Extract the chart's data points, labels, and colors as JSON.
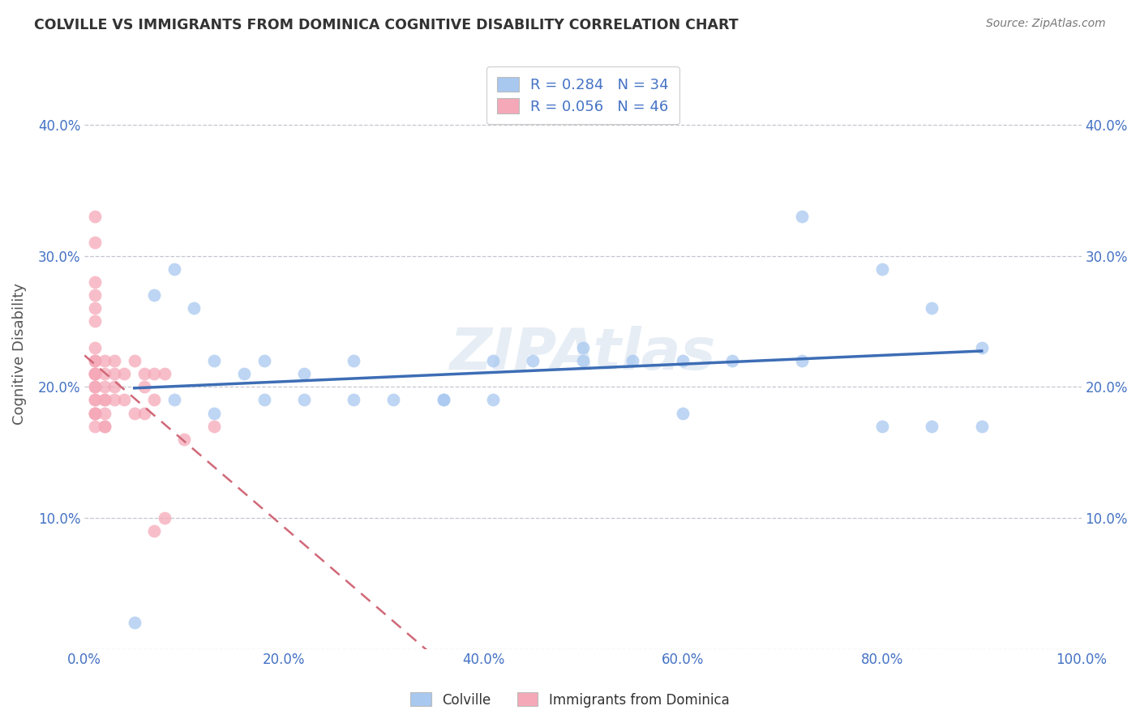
{
  "title": "COLVILLE VS IMMIGRANTS FROM DOMINICA COGNITIVE DISABILITY CORRELATION CHART",
  "source": "Source: ZipAtlas.com",
  "ylabel": "Cognitive Disability",
  "watermark": "ZIPAtlas",
  "legend_colville": "Colville",
  "legend_immigrants": "Immigrants from Dominica",
  "R_colville": 0.284,
  "N_colville": 34,
  "R_immigrants": 0.056,
  "N_immigrants": 46,
  "colville_color": "#a8c8f0",
  "immigrants_color": "#f5a8b8",
  "line_colville_color": "#3d6db5",
  "line_immigrants_color": "#d06878",
  "background_color": "#ffffff",
  "grid_color": "#c0c0cc",
  "xlim": [
    0.0,
    1.0
  ],
  "ylim": [
    0.0,
    0.45
  ],
  "xticks": [
    0.0,
    0.2,
    0.4,
    0.6,
    0.8,
    1.0
  ],
  "yticks": [
    0.0,
    0.1,
    0.2,
    0.3,
    0.4
  ],
  "xticklabels": [
    "0.0%",
    "20.0%",
    "40.0%",
    "60.0%",
    "80.0%",
    "100.0%"
  ],
  "yticklabels": [
    "",
    "10.0%",
    "20.0%",
    "30.0%",
    "40.0%"
  ],
  "colville_x": [
    0.05,
    0.07,
    0.09,
    0.11,
    0.13,
    0.16,
    0.18,
    0.22,
    0.27,
    0.31,
    0.36,
    0.41,
    0.45,
    0.5,
    0.5,
    0.55,
    0.6,
    0.65,
    0.72,
    0.8,
    0.85,
    0.9,
    0.22,
    0.27,
    0.09,
    0.13,
    0.18,
    0.36,
    0.41,
    0.6,
    0.72,
    0.8,
    0.85,
    0.9
  ],
  "colville_y": [
    0.02,
    0.27,
    0.29,
    0.26,
    0.22,
    0.21,
    0.22,
    0.21,
    0.22,
    0.19,
    0.19,
    0.22,
    0.22,
    0.22,
    0.23,
    0.22,
    0.22,
    0.22,
    0.33,
    0.29,
    0.26,
    0.23,
    0.19,
    0.19,
    0.19,
    0.18,
    0.19,
    0.19,
    0.19,
    0.18,
    0.22,
    0.17,
    0.17,
    0.17
  ],
  "immigrants_x": [
    0.01,
    0.01,
    0.01,
    0.01,
    0.01,
    0.01,
    0.01,
    0.01,
    0.01,
    0.01,
    0.01,
    0.01,
    0.01,
    0.01,
    0.01,
    0.01,
    0.01,
    0.01,
    0.01,
    0.01,
    0.02,
    0.02,
    0.02,
    0.02,
    0.02,
    0.02,
    0.02,
    0.02,
    0.03,
    0.03,
    0.03,
    0.03,
    0.04,
    0.04,
    0.05,
    0.05,
    0.06,
    0.06,
    0.06,
    0.07,
    0.07,
    0.08,
    0.1,
    0.13,
    0.07,
    0.08
  ],
  "immigrants_y": [
    0.33,
    0.31,
    0.28,
    0.27,
    0.26,
    0.25,
    0.23,
    0.22,
    0.22,
    0.21,
    0.21,
    0.21,
    0.2,
    0.2,
    0.19,
    0.19,
    0.18,
    0.18,
    0.18,
    0.17,
    0.22,
    0.21,
    0.2,
    0.19,
    0.19,
    0.18,
    0.17,
    0.17,
    0.22,
    0.21,
    0.2,
    0.19,
    0.21,
    0.19,
    0.22,
    0.18,
    0.21,
    0.2,
    0.18,
    0.21,
    0.19,
    0.21,
    0.16,
    0.17,
    0.09,
    0.1
  ]
}
